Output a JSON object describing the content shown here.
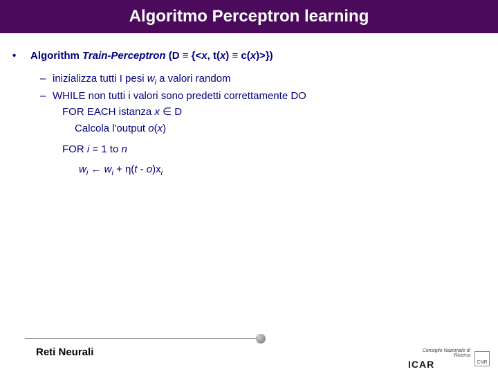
{
  "title": "Algoritmo Perceptron learning",
  "algLine_pre": "Algorithm ",
  "algLine_name": "Train-Perceptron ",
  "algLine_paren_html": "(D ≡ {&lt;<span class='italic'>x</span>, t(<span class='italic'>x</span>) ≡ c(<span class='italic'>x</span>)&gt;})",
  "sub1_html": "inizializza tutti I pesi <span class='italic'>w</span><span class='subscr'>i</span> a valori random",
  "sub2": "WHILE non tutti i valori sono predetti correttamente DO",
  "sub3_html": "FOR EACH istanza <span class='italic'>x</span> ∈ D",
  "sub4_html": "Calcola l'output <span class='italic'>o</span>(<span class='italic'>x</span>)",
  "sub5_html": "FOR <span class='italic'>i</span> = 1 to <span class='italic'>n</span>",
  "sub6_html": "<span class='italic'>w</span><span class='subscr'>i</span> ← <span class='italic'>w</span><span class='subscr'>i</span> + η(<span class='italic'>t</span> - <span class='italic'>o</span>)x<span class='subscr'>i</span>",
  "footer_label": "Reti Neurali",
  "logo_small": "Consiglio Nazionale di Ricerca",
  "logo_main": "ICAR",
  "logo_cnr": "CNR"
}
